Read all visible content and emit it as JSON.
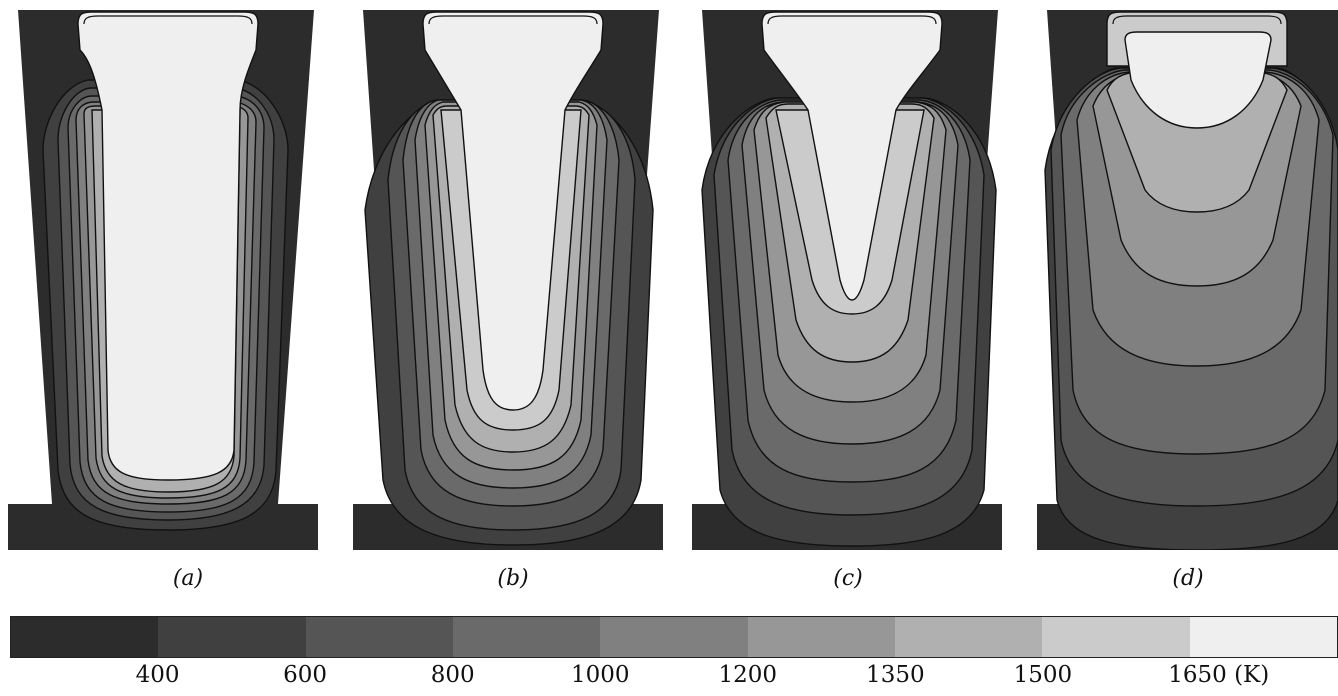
{
  "panels": [
    {
      "label": "(a)"
    },
    {
      "label": "(b)"
    },
    {
      "label": "(c)"
    },
    {
      "label": "(d)"
    }
  ],
  "colorbar": {
    "colors": [
      "#2c2c2c",
      "#404040",
      "#555555",
      "#6a6a6a",
      "#808080",
      "#979797",
      "#b0b0b0",
      "#cbcbcb",
      "#efefef"
    ],
    "tick_labels": [
      "400",
      "600",
      "800",
      "1000",
      "1200",
      "1350",
      "1500",
      "1650 (K)"
    ]
  },
  "colors": {
    "mould": "#2c2c2c",
    "contour_line": "#111111",
    "liquid": "#efefef"
  }
}
